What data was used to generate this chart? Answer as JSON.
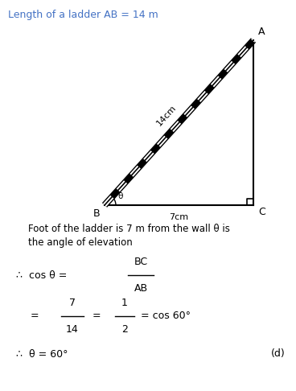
{
  "title_text": "Length of a ladder AB = 14 m",
  "title_color": "#4472C4",
  "bg_color": "#ffffff",
  "label_A": "A",
  "label_B": "B",
  "label_C": "C",
  "label_ladder": "14cm",
  "label_base": "7cm",
  "label_angle": "θ",
  "text_line1": "Foot of the ladder is 7 m from the wall θ is",
  "text_line2": "the angle of elevation",
  "answer_label": "(d)"
}
